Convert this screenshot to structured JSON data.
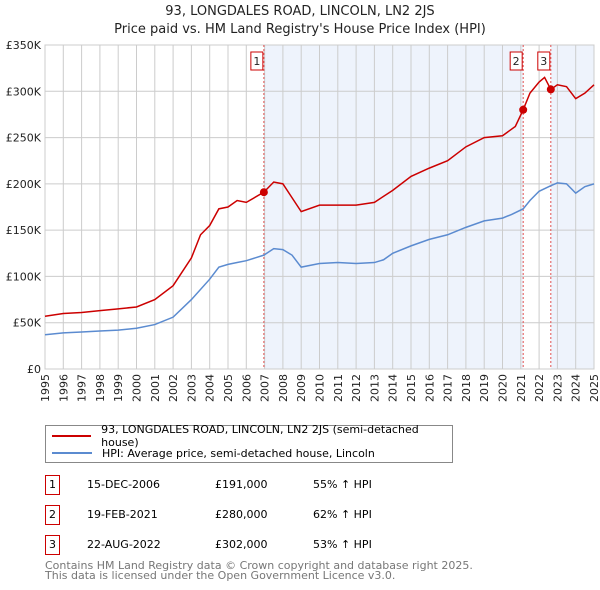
{
  "title": "93, LONGDALES ROAD, LINCOLN, LN2 2JS",
  "subtitle": "Price paid vs. HM Land Registry's House Price Index (HPI)",
  "chart_data": {
    "type": "line",
    "ylim": [
      0,
      350000
    ],
    "xlim": [
      1995,
      2025
    ],
    "yticks": [
      0,
      50000,
      100000,
      150000,
      200000,
      250000,
      300000,
      350000
    ],
    "ytick_labels": [
      "£0",
      "£50K",
      "£100K",
      "£150K",
      "£200K",
      "£250K",
      "£300K",
      "£350K"
    ],
    "xtick_labels": [
      "1995",
      "1996",
      "1997",
      "1998",
      "1999",
      "2000",
      "2001",
      "2002",
      "2003",
      "2004",
      "2005",
      "2006",
      "2007",
      "2008",
      "2009",
      "2010",
      "2011",
      "2012",
      "2013",
      "2014",
      "2015",
      "2016",
      "2017",
      "2018",
      "2019",
      "2020",
      "2021",
      "2022",
      "2023",
      "2024",
      "2025"
    ],
    "grid": true,
    "series": [
      {
        "name": "93, LONGDALES ROAD, LINCOLN, LN2 2JS (semi-detached house)",
        "color": "#cc0000",
        "x": [
          1995,
          1996,
          1997,
          1998,
          1999,
          2000,
          2001,
          2002,
          2003,
          2003.5,
          2004,
          2004.5,
          2005,
          2005.5,
          2006,
          2006.96,
          2007.5,
          2008,
          2008.5,
          2009,
          2010,
          2011,
          2012,
          2013,
          2014,
          2015,
          2016,
          2017,
          2018,
          2019,
          2020,
          2020.7,
          2021.13,
          2021.5,
          2022,
          2022.3,
          2022.64,
          2023,
          2023.5,
          2024,
          2024.5,
          2025
        ],
        "y": [
          57000,
          60000,
          61000,
          63000,
          65000,
          67000,
          75000,
          90000,
          120000,
          145000,
          155000,
          173000,
          175000,
          182000,
          180000,
          191000,
          202000,
          200000,
          185000,
          170000,
          177000,
          177000,
          177000,
          180000,
          193000,
          208000,
          217000,
          225000,
          240000,
          250000,
          252000,
          262000,
          280000,
          298000,
          310000,
          315000,
          302000,
          307000,
          305000,
          292000,
          298000,
          307000
        ]
      },
      {
        "name": "HPI: Average price, semi-detached house, Lincoln",
        "color": "#5b8bd0",
        "x": [
          1995,
          1996,
          1997,
          1998,
          1999,
          2000,
          2001,
          2002,
          2003,
          2004,
          2004.5,
          2005,
          2005.5,
          2006,
          2006.96,
          2007.5,
          2008,
          2008.5,
          2009,
          2010,
          2011,
          2012,
          2013,
          2013.5,
          2014,
          2015,
          2016,
          2017,
          2018,
          2019,
          2020,
          2020.5,
          2021.13,
          2021.5,
          2022,
          2022.64,
          2023,
          2023.5,
          2024,
          2024.5,
          2025
        ],
        "y": [
          37000,
          39000,
          40000,
          41000,
          42000,
          44000,
          48000,
          56000,
          75000,
          97000,
          110000,
          113000,
          115000,
          117000,
          123000,
          130000,
          129000,
          123000,
          110000,
          114000,
          115000,
          114000,
          115000,
          118000,
          125000,
          133000,
          140000,
          145000,
          153000,
          160000,
          163000,
          167000,
          173000,
          182000,
          192000,
          198000,
          201000,
          200000,
          190000,
          197000,
          200000
        ]
      }
    ],
    "sales": [
      {
        "label": "1",
        "x": 2006.96,
        "y": 191000,
        "date": "15-DEC-2006",
        "price": "£191,000",
        "hpi": "55% ↑ HPI"
      },
      {
        "label": "2",
        "x": 2021.13,
        "y": 280000,
        "date": "19-FEB-2021",
        "price": "£280,000",
        "hpi": "62% ↑ HPI"
      },
      {
        "label": "3",
        "x": 2022.64,
        "y": 302000,
        "date": "22-AUG-2022",
        "price": "£302,000",
        "hpi": "53% ↑ HPI"
      }
    ]
  },
  "footer": [
    "Contains HM Land Registry data © Crown copyright and database right 2025.",
    "This data is licensed under the Open Government Licence v3.0."
  ]
}
